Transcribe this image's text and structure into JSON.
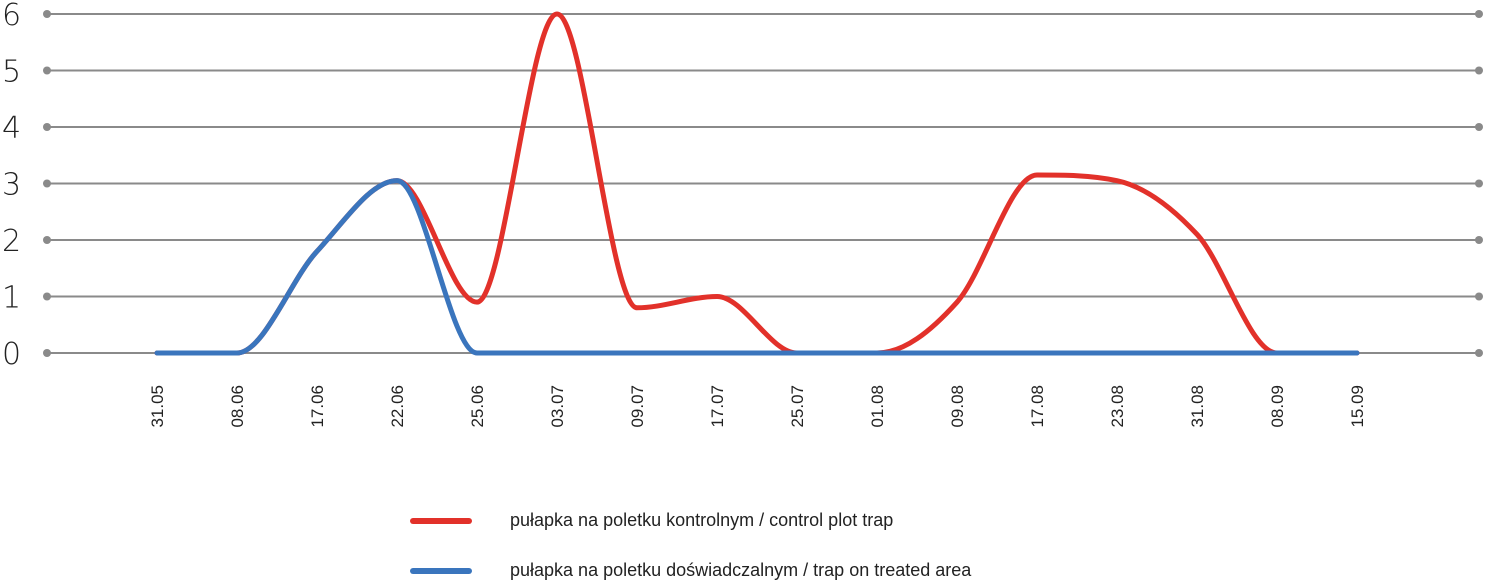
{
  "chart_data": {
    "type": "line",
    "categories": [
      "31.05",
      "08.06",
      "17.06",
      "22.06",
      "25.06",
      "03.07",
      "09.07",
      "17.07",
      "25.07",
      "01.08",
      "09.08",
      "17.08",
      "23.08",
      "31.08",
      "08.09",
      "15.09"
    ],
    "series": [
      {
        "name": "pułapka na poletku kontrolnym / control plot trap",
        "color": "#e2312a",
        "values": [
          0,
          0,
          1.8,
          3.05,
          0.9,
          6,
          0.8,
          1,
          0,
          0,
          0.9,
          3.15,
          3.05,
          2.1,
          0,
          0
        ]
      },
      {
        "name": "pułapka na poletku doświadczalnym / trap on treated area",
        "color": "#3a75bd",
        "values": [
          0,
          0,
          1.8,
          3.05,
          0,
          0,
          0,
          0,
          0,
          0,
          0,
          0,
          0,
          0,
          0,
          0
        ]
      }
    ],
    "yticks": [
      "0",
      "1",
      "2",
      "3",
      "4",
      "5",
      "6"
    ],
    "ylim": [
      0,
      6
    ],
    "grid": true,
    "gridline_color": "#8a8a8a",
    "legend_position": "bottom"
  }
}
